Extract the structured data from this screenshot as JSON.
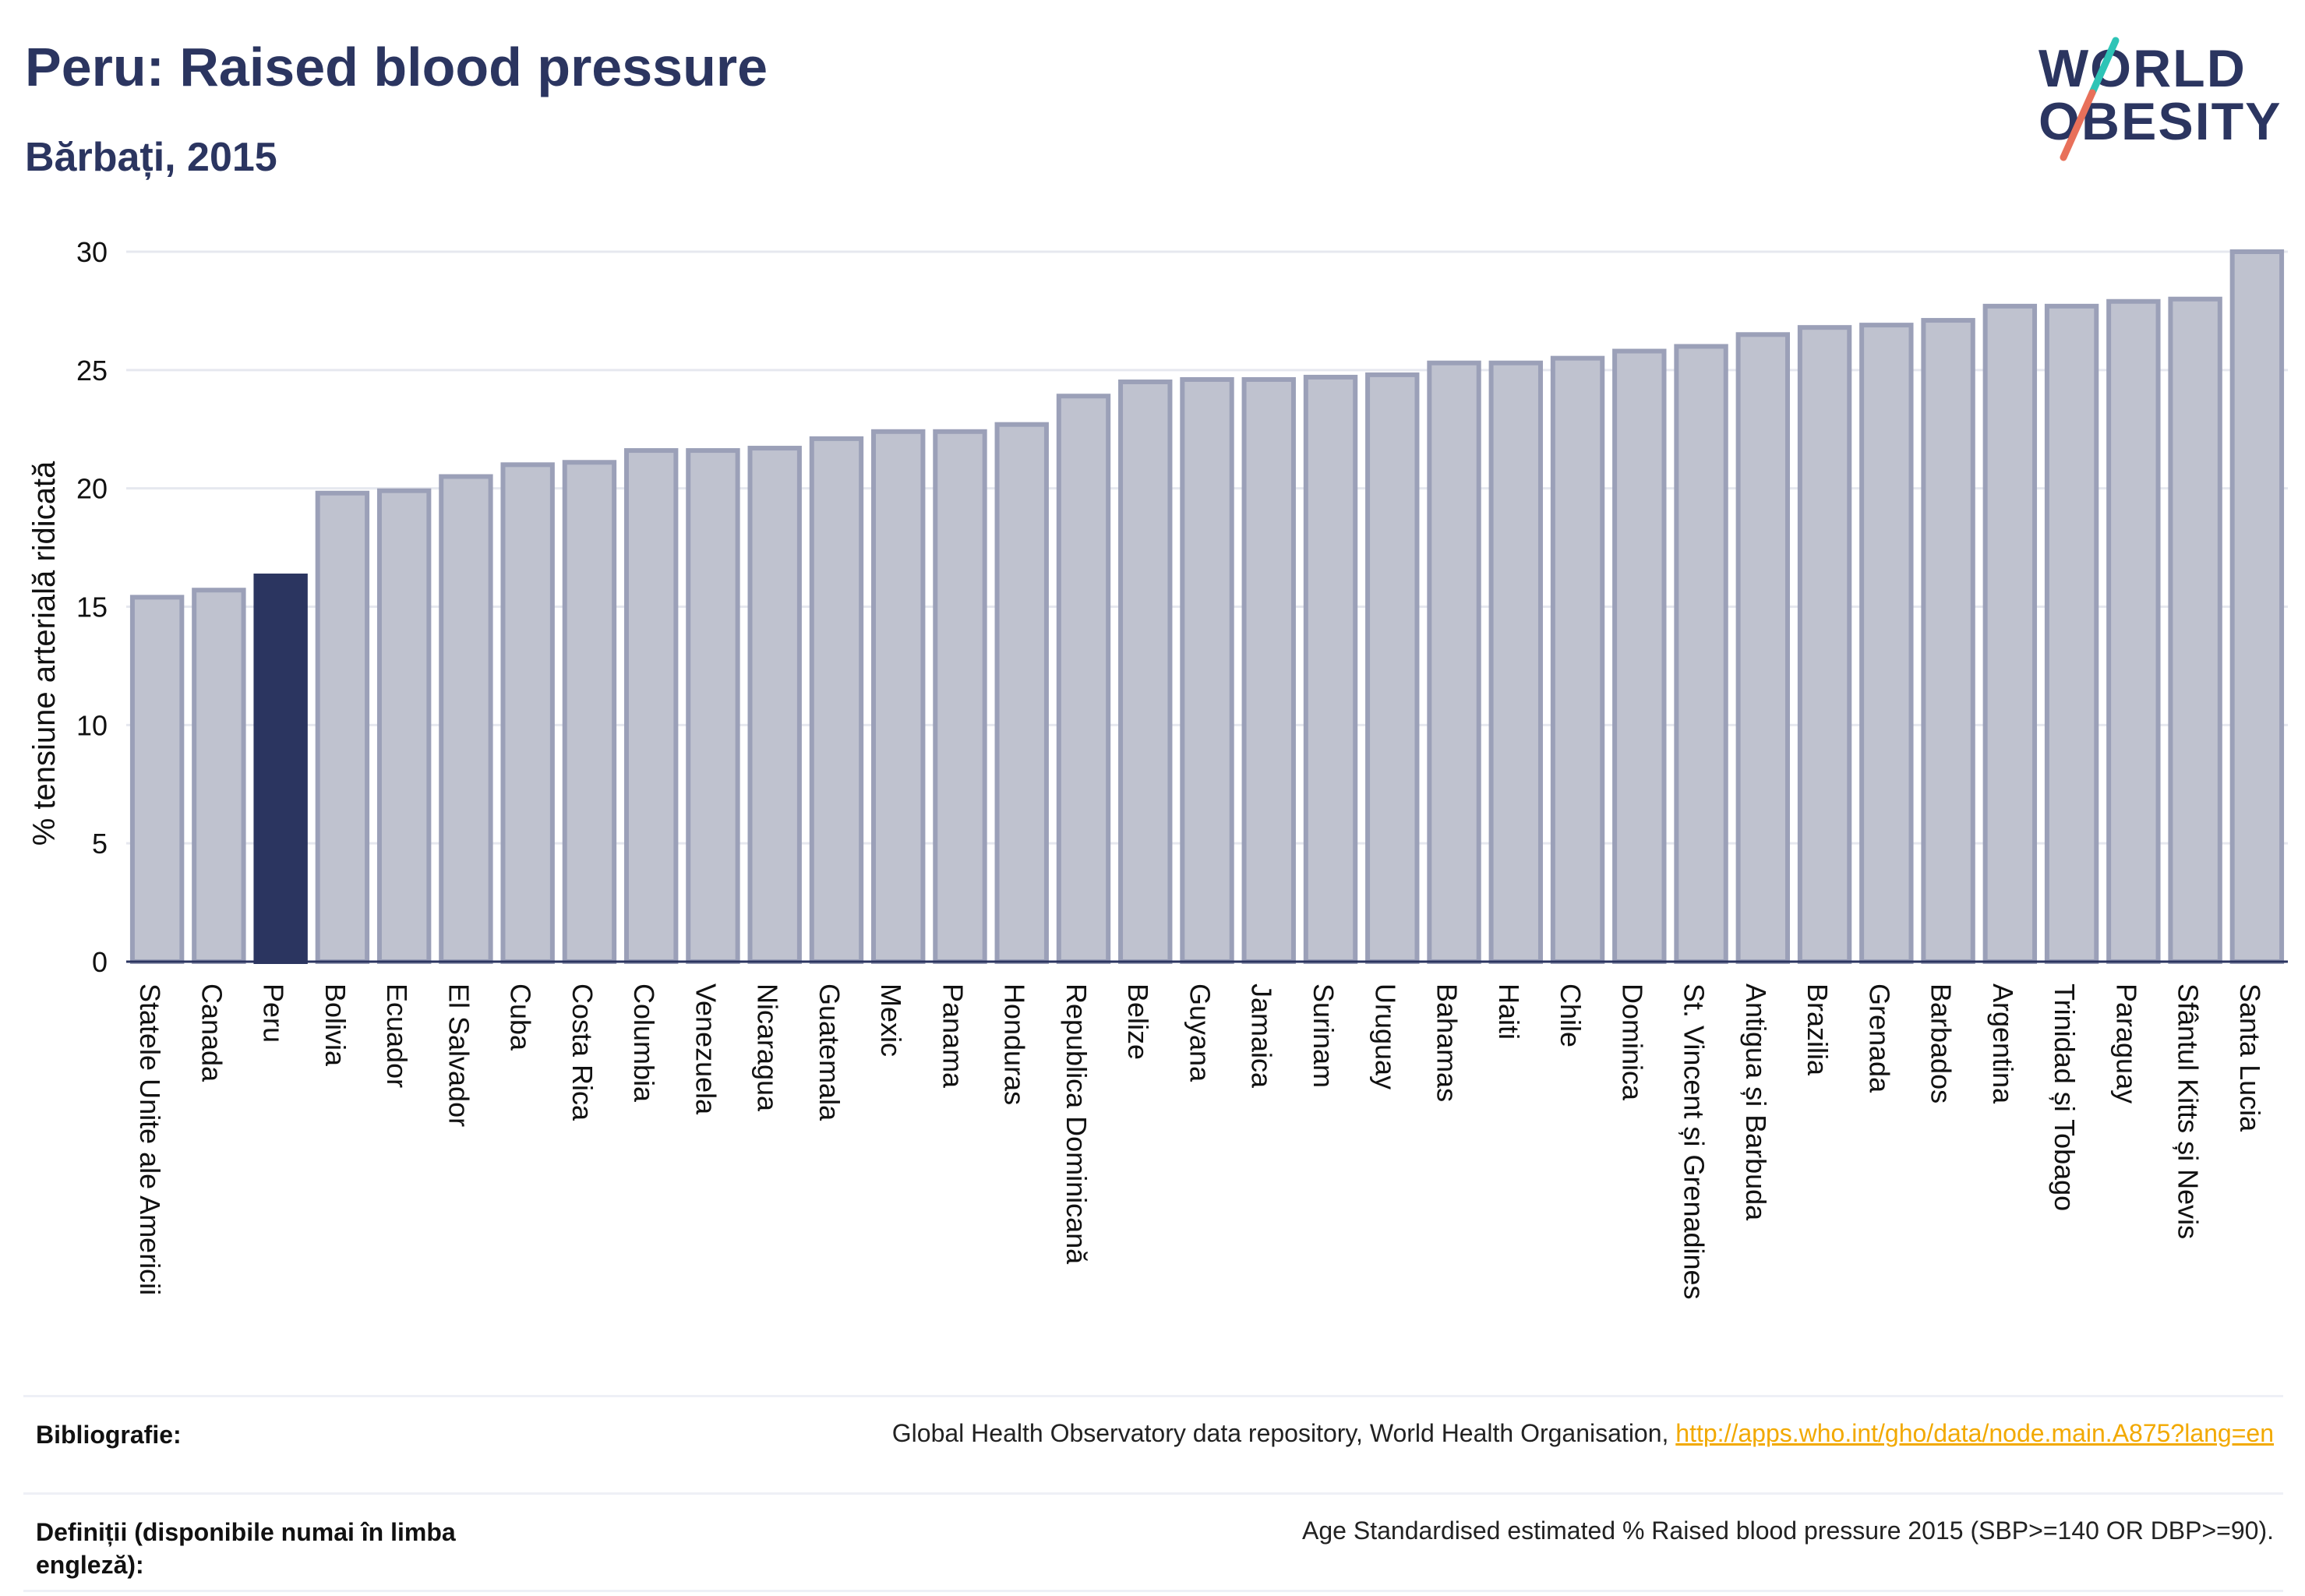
{
  "header": {
    "title": "Peru: Raised blood pressure",
    "subtitle": "Bărbați, 2015"
  },
  "logo": {
    "line1": "WORLD",
    "line2": "OBESITY",
    "colors": {
      "navy": "#2b3560",
      "teal": "#2ec4b6",
      "coral": "#e8705a"
    }
  },
  "chart_data": {
    "type": "bar",
    "title": "Peru: Raised blood pressure",
    "subtitle": "Bărbați, 2015",
    "xlabel": "",
    "ylabel": "% tensiune arterială ridicată",
    "ylim": [
      0,
      30
    ],
    "yticks": [
      0,
      5,
      10,
      15,
      20,
      25,
      30
    ],
    "grid": true,
    "highlight": "Peru",
    "colors": {
      "bar": "#bfc2cf",
      "bar_border": "#9ba0b8",
      "highlight": "#2b3560"
    },
    "categories": [
      "Statele Unite ale Americii",
      "Canada",
      "Peru",
      "Bolivia",
      "Ecuador",
      "El Salvador",
      "Cuba",
      "Costa Rica",
      "Columbia",
      "Venezuela",
      "Nicaragua",
      "Guatemala",
      "Mexic",
      "Panama",
      "Honduras",
      "Republica Dominicană",
      "Belize",
      "Guyana",
      "Jamaica",
      "Surinam",
      "Uruguay",
      "Bahamas",
      "Haiti",
      "Chile",
      "Dominica",
      "St. Vincent și Grenadines",
      "Antigua și Barbuda",
      "Brazilia",
      "Grenada",
      "Barbados",
      "Argentina",
      "Trinidad și Tobago",
      "Paraguay",
      "Sfântul Kitts și Nevis",
      "Santa Lucia"
    ],
    "values": [
      15.4,
      15.7,
      16.3,
      19.8,
      19.9,
      20.5,
      21.0,
      21.1,
      21.6,
      21.6,
      21.7,
      22.1,
      22.4,
      22.4,
      22.7,
      23.9,
      24.5,
      24.6,
      24.6,
      24.7,
      24.8,
      25.3,
      25.3,
      25.5,
      25.8,
      26.0,
      26.5,
      26.8,
      26.9,
      27.1,
      27.7,
      27.7,
      27.9,
      28.0,
      30.0
    ]
  },
  "references": {
    "bibliography_label": "Bibliografie:",
    "bibliography_text": "Global Health Observatory data repository, World Health Organisation,",
    "bibliography_link": "http://apps.who.int/gho/data/node.main.A875?lang=en",
    "definitions_label": "Definiții (disponibile numai în limba engleză):",
    "definitions_text": "Age Standardised estimated % Raised blood pressure 2015 (SBP>=140 OR DBP>=90)."
  }
}
